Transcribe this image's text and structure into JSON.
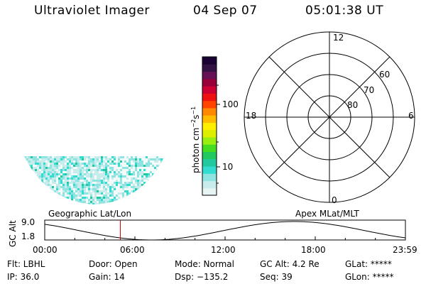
{
  "header": {
    "instrument": "Ultraviolet Imager",
    "date": "04 Sep 07",
    "time": "05:01:38 UT"
  },
  "colorbar": {
    "label": "photon cm^-2 s^-1",
    "tick_labels": [
      "100",
      "10"
    ],
    "colors": [
      "#e6f4f4",
      "#c8ecec",
      "#8fe3e0",
      "#33dcd0",
      "#22c8a0",
      "#22c860",
      "#44dd22",
      "#99ee11",
      "#ddee00",
      "#ffee00",
      "#ffbb00",
      "#ff8800",
      "#ff4400",
      "#ee1111",
      "#cc0033",
      "#99003a",
      "#661155",
      "#331144",
      "#1a0033"
    ]
  },
  "polar_plot": {
    "lat_labels": [
      "60",
      "70",
      "80"
    ],
    "mlt_labels": {
      "top": "12",
      "bottom": "0",
      "left": "18",
      "right": "6"
    }
  },
  "image_panel": {
    "projection_label": "Geographic Lat/Lon"
  },
  "altitude_plot": {
    "ylabel": "GC Alt",
    "yticks": [
      "9.0",
      "1.8"
    ],
    "projection_label": "Apex MLat/MLT",
    "xticks": [
      "00:00",
      "06:00",
      "12:00",
      "18:00",
      "23:59"
    ],
    "current_time_marker_hour": 5.03,
    "marker_color": "#cc0000"
  },
  "status": {
    "filter": "Flt: LBHL",
    "door": "Door: Open",
    "mode": "Mode: Normal",
    "gc_alt": "GC Alt: 4.2 Re",
    "glat": "GLat: *****",
    "ip": "IP: 36.0",
    "gain": "Gain: 14",
    "dsp": "Dsp: −135.2",
    "seq": "Seq: 39",
    "glon": "GLon: *****"
  }
}
